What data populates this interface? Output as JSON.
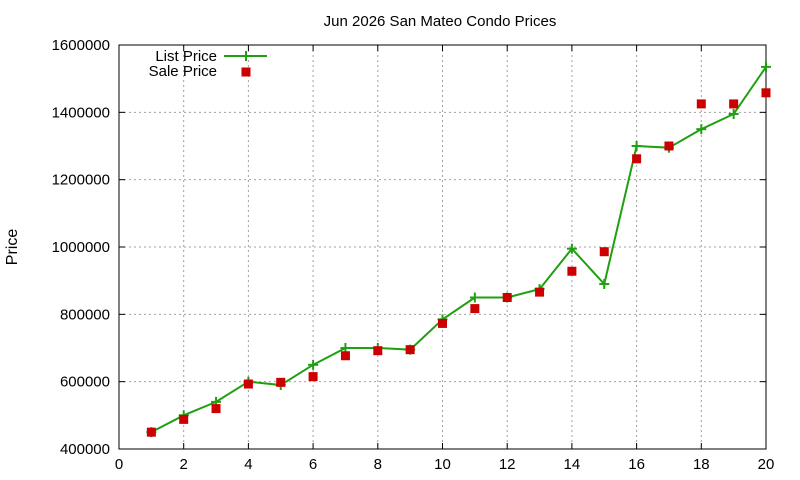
{
  "chart_data": {
    "type": "line",
    "title": "Jun 2026 San Mateo Condo Prices",
    "xlabel": "",
    "ylabel": "Price",
    "xlim": [
      0,
      20
    ],
    "ylim": [
      400000,
      1600000
    ],
    "xticks": [
      0,
      2,
      4,
      6,
      8,
      10,
      12,
      14,
      16,
      18,
      20
    ],
    "yticks": [
      400000,
      600000,
      800000,
      1000000,
      1200000,
      1400000,
      1600000
    ],
    "grid": true,
    "legend_position": "top-left",
    "series": [
      {
        "name": "List Price",
        "style": "line-with-plus-markers",
        "color": "#1fa010",
        "x": [
          1,
          2,
          3,
          4,
          5,
          6,
          7,
          8,
          9,
          10,
          11,
          12,
          13,
          14,
          15,
          16,
          17,
          18,
          19,
          20
        ],
        "values": [
          450000,
          500000,
          540000,
          600000,
          590000,
          650000,
          700000,
          700000,
          695000,
          785000,
          850000,
          850000,
          875000,
          995000,
          890000,
          1300000,
          1295000,
          1350000,
          1395000,
          1535000
        ]
      },
      {
        "name": "Sale Price",
        "style": "square-markers",
        "color": "#cc0000",
        "x": [
          1,
          2,
          3,
          4,
          5,
          6,
          7,
          8,
          9,
          10,
          11,
          12,
          13,
          14,
          15,
          16,
          17,
          18,
          19,
          20
        ],
        "values": [
          450000,
          488000,
          520000,
          593000,
          598000,
          615000,
          677000,
          692000,
          695000,
          773000,
          817000,
          850000,
          866000,
          928000,
          986000,
          1262000,
          1300000,
          1425000,
          1425000,
          1458000
        ]
      }
    ]
  }
}
